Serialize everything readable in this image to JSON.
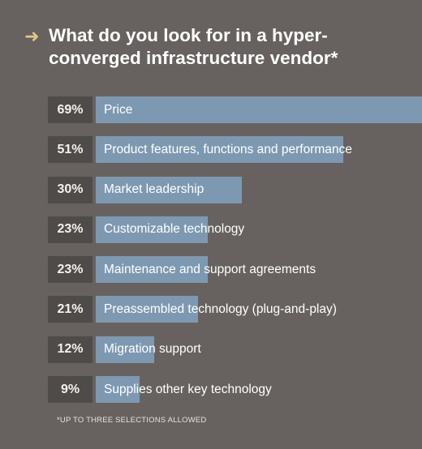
{
  "title": "What do you look for in a hyper-converged infrastructure vendor*",
  "title_line1": "What do you look for in a hyper-",
  "title_line2": "converged infrastructure vendor*",
  "footnote": "*UP TO THREE SELECTIONS ALLOWED",
  "colors": {
    "background": "#67625f",
    "bar": "#7d99b1",
    "percent_box": "#4f4b49",
    "arrow": "#e4c58a"
  },
  "icon": "arrow-right-icon",
  "chart_data": {
    "type": "bar",
    "orientation": "horizontal",
    "title": "What do you look for in a hyper-converged infrastructure vendor*",
    "categories": [
      "Price",
      "Product features, functions and performance",
      "Market leadership",
      "Customizable technology",
      "Maintenance and support agreements",
      "Preassembled technology (plug-and-play)",
      "Migration support",
      "Supplies other key technology"
    ],
    "values": [
      69,
      51,
      30,
      23,
      23,
      21,
      12,
      9
    ],
    "value_labels": [
      "69%",
      "51%",
      "30%",
      "23%",
      "23%",
      "21%",
      "12%",
      "9%"
    ],
    "unit": "%",
    "xlim": [
      0,
      69
    ]
  }
}
